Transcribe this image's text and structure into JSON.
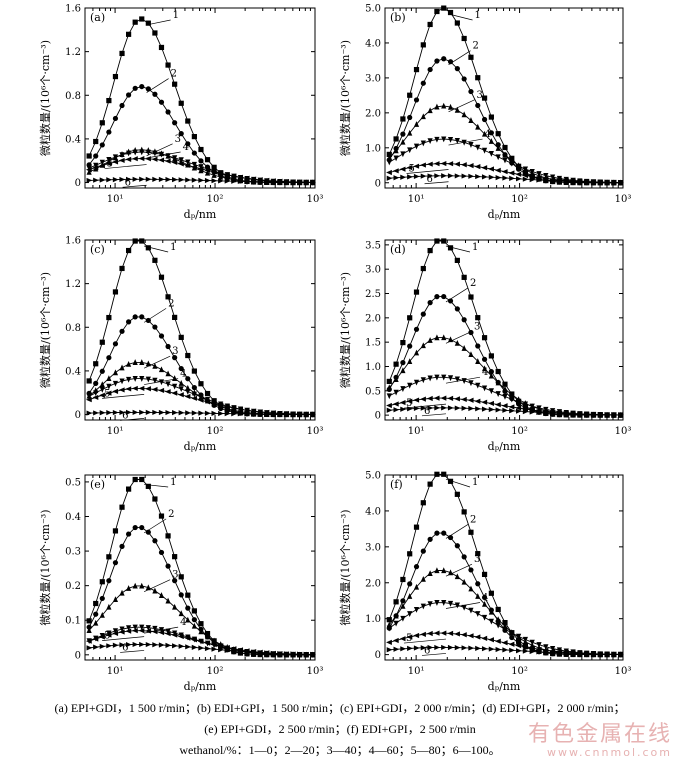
{
  "axis": {
    "ylabel": "微粒数量/(10⁶个·cm⁻³)",
    "xlabel": "dₚ/nm",
    "xticks": [
      "10¹",
      "10²",
      "10³"
    ]
  },
  "chart_data": [
    {
      "type": "line",
      "tag": "(a)",
      "xscale": "log",
      "xlim": [
        5,
        1000
      ],
      "ylim": [
        -0.05,
        1.6
      ],
      "yticks": [
        "0",
        "0.4",
        "0.8",
        "1.2",
        "1.6"
      ],
      "ytick_values": [
        0,
        0.4,
        0.8,
        1.2,
        1.6
      ],
      "peaks": [
        1.5,
        0.88,
        0.3,
        0.28,
        0.22,
        0.03
      ],
      "series": [
        {
          "name": "1"
        },
        {
          "name": "2"
        },
        {
          "name": "3"
        },
        {
          "name": "4"
        },
        {
          "name": "5"
        },
        {
          "name": "6"
        }
      ]
    },
    {
      "type": "line",
      "tag": "(b)",
      "xscale": "log",
      "xlim": [
        5,
        1000
      ],
      "ylim": [
        -0.15,
        5.0
      ],
      "yticks": [
        "0",
        "1.0",
        "2.0",
        "3.0",
        "4.0",
        "5.0"
      ],
      "ytick_values": [
        0,
        1,
        2,
        3,
        4,
        5
      ],
      "peaks": [
        5.0,
        3.55,
        2.2,
        1.25,
        0.55,
        0.2
      ],
      "series": [
        {
          "name": "1"
        },
        {
          "name": "2"
        },
        {
          "name": "3"
        },
        {
          "name": "4"
        },
        {
          "name": "5"
        },
        {
          "name": "6"
        }
      ]
    },
    {
      "type": "line",
      "tag": "(c)",
      "xscale": "log",
      "xlim": [
        5,
        1000
      ],
      "ylim": [
        -0.05,
        1.6
      ],
      "yticks": [
        "0",
        "0.4",
        "0.8",
        "1.2",
        "1.6"
      ],
      "ytick_values": [
        0,
        0.4,
        0.8,
        1.2,
        1.6
      ],
      "peaks": [
        1.6,
        0.9,
        0.48,
        0.33,
        0.24,
        0.02
      ],
      "series": [
        {
          "name": "1"
        },
        {
          "name": "2"
        },
        {
          "name": "3"
        },
        {
          "name": "4"
        },
        {
          "name": "5"
        },
        {
          "name": "6"
        }
      ]
    },
    {
      "type": "line",
      "tag": "(d)",
      "xscale": "log",
      "xlim": [
        5,
        1000
      ],
      "ylim": [
        -0.1,
        3.6
      ],
      "yticks": [
        "0",
        "0.5",
        "1.0",
        "1.5",
        "2.0",
        "2.5",
        "3.0",
        "3.5"
      ],
      "ytick_values": [
        0,
        0.5,
        1,
        1.5,
        2,
        2.5,
        3,
        3.5
      ],
      "peaks": [
        3.6,
        2.45,
        1.6,
        0.78,
        0.35,
        0.15
      ],
      "series": [
        {
          "name": "1"
        },
        {
          "name": "2"
        },
        {
          "name": "3"
        },
        {
          "name": "4"
        },
        {
          "name": "5"
        },
        {
          "name": "6"
        }
      ]
    },
    {
      "type": "line",
      "tag": "(e)",
      "xscale": "log",
      "xlim": [
        5,
        1000
      ],
      "ylim": [
        -0.015,
        0.52
      ],
      "yticks": [
        "0",
        "0.1",
        "0.2",
        "0.3",
        "0.4",
        "0.5"
      ],
      "ytick_values": [
        0,
        0.1,
        0.2,
        0.3,
        0.4,
        0.5
      ],
      "peaks": [
        0.51,
        0.37,
        0.2,
        0.08,
        0.07,
        0.03
      ],
      "series": [
        {
          "name": "1"
        },
        {
          "name": "2"
        },
        {
          "name": "3"
        },
        {
          "name": "4"
        },
        {
          "name": "5"
        },
        {
          "name": "6"
        }
      ]
    },
    {
      "type": "line",
      "tag": "(f)",
      "xscale": "log",
      "xlim": [
        5,
        1000
      ],
      "ylim": [
        -0.15,
        5.0
      ],
      "yticks": [
        "0",
        "1.0",
        "2.0",
        "3.0",
        "4.0",
        "5.0"
      ],
      "ytick_values": [
        0,
        1,
        2,
        3,
        4,
        5
      ],
      "peaks": [
        5.05,
        3.4,
        2.35,
        1.45,
        0.6,
        0.2
      ],
      "series": [
        {
          "name": "1"
        },
        {
          "name": "2"
        },
        {
          "name": "3"
        },
        {
          "name": "4"
        },
        {
          "name": "5"
        },
        {
          "name": "6"
        }
      ]
    }
  ],
  "caption": {
    "line1": "(a) EPI+GDI，1 500 r/min；(b) EDI+GPI，1 500 r/min；(c) EPI+GDI，2 000 r/min；(d) EDI+GPI，2 000 r/min；",
    "line2": "(e) EPI+GDI，2 500 r/min；(f) EDI+GPI，2 500 r/min",
    "line3": "wethanol/%：1—0；2—20；3—40；4—60；5—80；6—100。"
  },
  "watermark": {
    "cn": "有色金属在线",
    "url": "www.cnnmol.com"
  }
}
